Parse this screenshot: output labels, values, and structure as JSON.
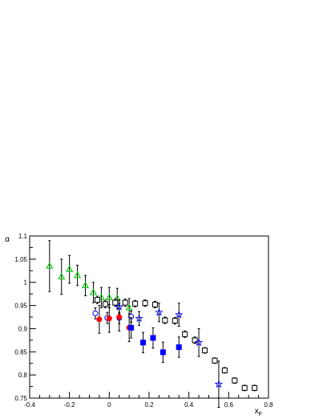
{
  "chart_data": {
    "type": "scatter",
    "title": "",
    "xlabel": "x",
    "xlabel_sub": "F",
    "ylabel": "α",
    "xlim": [
      -0.4,
      0.8
    ],
    "ylim": [
      0.75,
      1.1
    ],
    "xticks": [
      -0.4,
      -0.2,
      0,
      0.2,
      0.4,
      0.6,
      0.8
    ],
    "xtick_labels": [
      "-0.4",
      "-0.2",
      "0",
      "0.2",
      "0.4",
      "0.6",
      "0.8"
    ],
    "yticks": [
      0.75,
      0.8,
      0.85,
      0.9,
      0.95,
      1,
      1.05,
      1.1
    ],
    "ytick_labels": [
      "0.75",
      "0.8",
      "0.85",
      "0.9",
      "0.95",
      "1",
      "1.05",
      "1.1"
    ],
    "grid": false,
    "series": [
      {
        "marker": "triangle-open",
        "color": "#00cc00",
        "points": [
          {
            "x": -0.3,
            "y": 1.035,
            "err": 0.055
          },
          {
            "x": -0.24,
            "y": 1.012,
            "err": 0.038
          },
          {
            "x": -0.2,
            "y": 1.028,
            "err": 0.03
          },
          {
            "x": -0.16,
            "y": 1.015,
            "err": 0.022
          },
          {
            "x": -0.12,
            "y": 0.993,
            "err": 0.022
          },
          {
            "x": -0.08,
            "y": 0.978,
            "err": 0.022
          },
          {
            "x": -0.04,
            "y": 0.967,
            "err": 0.022
          },
          {
            "x": 0.0,
            "y": 0.967,
            "err": 0.022
          },
          {
            "x": 0.04,
            "y": 0.965,
            "err": 0.022
          },
          {
            "x": 0.1,
            "y": 0.945,
            "err": 0.02
          }
        ]
      },
      {
        "marker": "square-open",
        "color": "#000000",
        "points": [
          {
            "x": -0.06,
            "y": 0.962,
            "err": 0.008
          },
          {
            "x": -0.02,
            "y": 0.953,
            "err": 0.008
          },
          {
            "x": 0.03,
            "y": 0.956,
            "err": 0.008
          },
          {
            "x": 0.08,
            "y": 0.956,
            "err": 0.008
          },
          {
            "x": 0.13,
            "y": 0.954,
            "err": 0.007
          },
          {
            "x": 0.18,
            "y": 0.955,
            "err": 0.007
          },
          {
            "x": 0.23,
            "y": 0.952,
            "err": 0.007
          },
          {
            "x": 0.28,
            "y": 0.918,
            "err": 0.007
          },
          {
            "x": 0.33,
            "y": 0.917,
            "err": 0.007
          },
          {
            "x": 0.38,
            "y": 0.888,
            "err": 0.007
          },
          {
            "x": 0.43,
            "y": 0.875,
            "err": 0.007
          },
          {
            "x": 0.48,
            "y": 0.853,
            "err": 0.006
          },
          {
            "x": 0.53,
            "y": 0.831,
            "err": 0.006
          },
          {
            "x": 0.58,
            "y": 0.81,
            "err": 0.006
          },
          {
            "x": 0.63,
            "y": 0.788,
            "err": 0.006
          },
          {
            "x": 0.68,
            "y": 0.772,
            "err": 0.006
          },
          {
            "x": 0.73,
            "y": 0.772,
            "err": 0.006
          }
        ]
      },
      {
        "marker": "circle-open",
        "color": "#0000ff",
        "points": [
          {
            "x": -0.07,
            "y": 0.933,
            "err": 0.012
          },
          {
            "x": -0.01,
            "y": 0.923,
            "err": 0.012
          },
          {
            "x": 0.05,
            "y": 0.923,
            "err": 0.012
          },
          {
            "x": 0.11,
            "y": 0.926,
            "err": 0.012
          }
        ]
      },
      {
        "marker": "circle-filled",
        "color": "#ff0000",
        "points": [
          {
            "x": -0.05,
            "y": 0.92,
            "err": 0.03
          },
          {
            "x": 0.0,
            "y": 0.922,
            "err": 0.03
          },
          {
            "x": 0.05,
            "y": 0.925,
            "err": 0.03
          },
          {
            "x": 0.1,
            "y": 0.902,
            "err": 0.03
          }
        ]
      },
      {
        "marker": "square-filled",
        "color": "#0000ff",
        "points": [
          {
            "x": 0.11,
            "y": 0.902,
            "err": 0.022
          },
          {
            "x": 0.17,
            "y": 0.87,
            "err": 0.022
          },
          {
            "x": 0.22,
            "y": 0.88,
            "err": 0.022
          },
          {
            "x": 0.27,
            "y": 0.849,
            "err": 0.022
          },
          {
            "x": 0.35,
            "y": 0.86,
            "err": 0.022
          }
        ]
      },
      {
        "marker": "star-open",
        "color": "#0000ff",
        "points": [
          {
            "x": 0.05,
            "y": 0.947,
            "err": 0.015
          },
          {
            "x": 0.15,
            "y": 0.922,
            "err": 0.015
          },
          {
            "x": 0.25,
            "y": 0.935,
            "err": 0.02
          },
          {
            "x": 0.35,
            "y": 0.93,
            "err": 0.025
          },
          {
            "x": 0.45,
            "y": 0.87,
            "err": 0.03
          },
          {
            "x": 0.55,
            "y": 0.78,
            "err": 0.05
          }
        ]
      }
    ]
  }
}
